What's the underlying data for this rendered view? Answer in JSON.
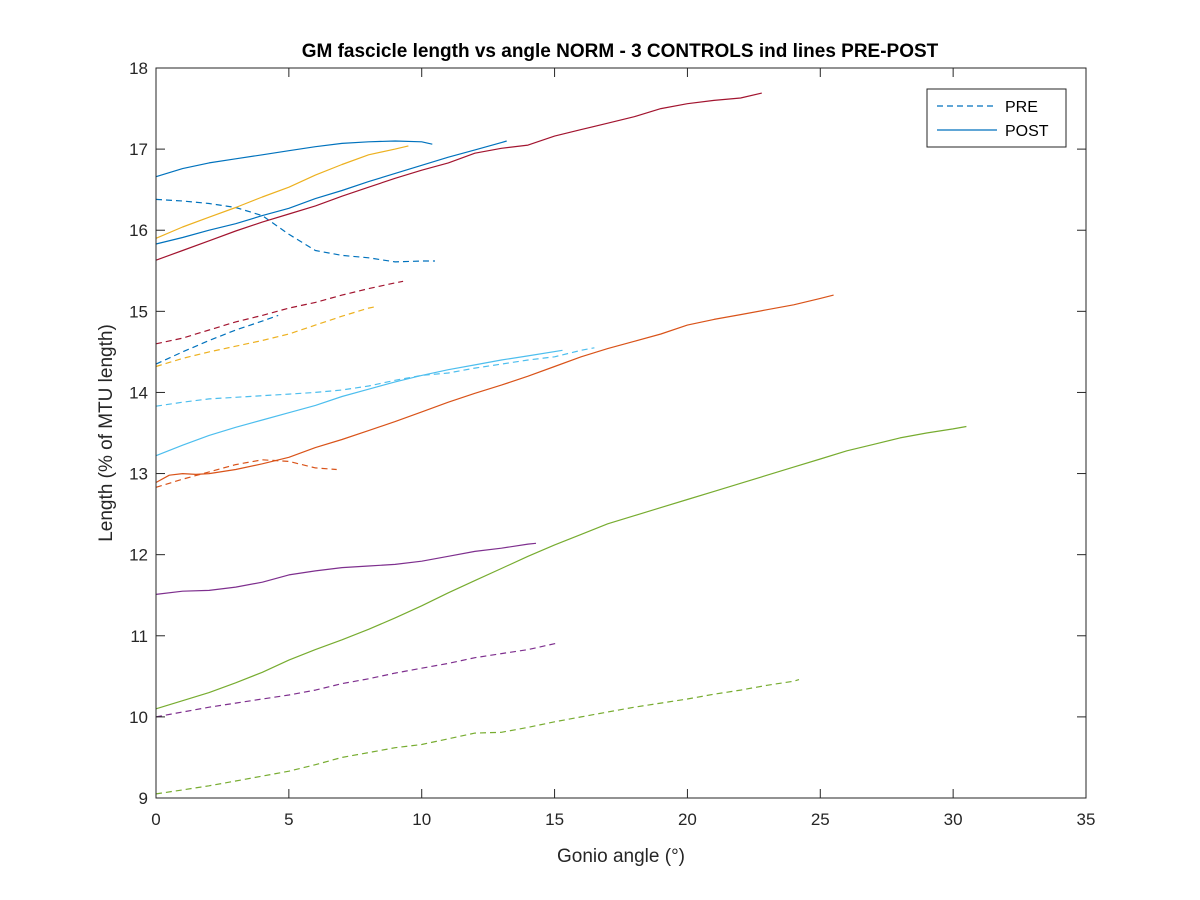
{
  "chart_data": {
    "type": "line",
    "title": "GM fascicle length vs angle NORM - 3 CONTROLS ind lines PRE-POST",
    "xlabel": "Gonio angle (°)",
    "ylabel": "Length (% of MTU length)",
    "xlim": [
      0,
      35
    ],
    "ylim": [
      9,
      18
    ],
    "xticks": [
      0,
      5,
      10,
      15,
      20,
      25,
      30,
      35
    ],
    "yticks": [
      9,
      10,
      11,
      12,
      13,
      14,
      15,
      16,
      17,
      18
    ],
    "grid": false,
    "legend": {
      "position": "top-right",
      "entries": [
        {
          "label": "PRE",
          "style": "dashed"
        },
        {
          "label": "POST",
          "style": "solid"
        }
      ]
    },
    "series": [
      {
        "color": "#0072BD",
        "style": "dashed",
        "x": [
          0,
          1,
          2,
          3,
          4,
          5,
          6,
          7,
          8,
          9,
          10,
          10.5
        ],
        "y": [
          16.38,
          16.36,
          16.33,
          16.28,
          16.18,
          15.95,
          15.75,
          15.69,
          15.66,
          15.61,
          15.62,
          15.62
        ]
      },
      {
        "color": "#0072BD",
        "style": "solid",
        "x": [
          0,
          1,
          2,
          3,
          4,
          5,
          6,
          7,
          8,
          9,
          10,
          10.4
        ],
        "y": [
          16.66,
          16.76,
          16.83,
          16.88,
          16.93,
          16.98,
          17.03,
          17.07,
          17.09,
          17.1,
          17.09,
          17.06
        ]
      },
      {
        "color": "#0072BD",
        "style": "dashed",
        "x": [
          0,
          1,
          2,
          3,
          4,
          4.6
        ],
        "y": [
          14.35,
          14.5,
          14.64,
          14.77,
          14.88,
          14.95
        ]
      },
      {
        "color": "#0072BD",
        "style": "solid",
        "x": [
          0,
          1,
          2,
          3,
          4,
          5,
          6,
          7,
          8,
          9,
          10,
          11,
          12,
          13,
          13.2
        ],
        "y": [
          15.83,
          15.91,
          16.0,
          16.08,
          16.18,
          16.27,
          16.39,
          16.49,
          16.6,
          16.7,
          16.8,
          16.9,
          16.99,
          17.08,
          17.1
        ]
      },
      {
        "color": "#D95319",
        "style": "dashed",
        "x": [
          0,
          1,
          2,
          3,
          4,
          5,
          6,
          6.8
        ],
        "y": [
          12.83,
          12.93,
          13.02,
          13.11,
          13.17,
          13.15,
          13.07,
          13.05
        ]
      },
      {
        "color": "#D95319",
        "style": "solid",
        "x": [
          0,
          0.5,
          1,
          1.5,
          2,
          3,
          4,
          5,
          6,
          7,
          8,
          9,
          10,
          11,
          12,
          13,
          14,
          15,
          16,
          17,
          18,
          19,
          20,
          21,
          22,
          23,
          24,
          25,
          25.5
        ],
        "y": [
          12.89,
          12.98,
          13.0,
          12.99,
          13.0,
          13.05,
          13.12,
          13.2,
          13.32,
          13.42,
          13.53,
          13.64,
          13.76,
          13.88,
          13.99,
          14.09,
          14.2,
          14.32,
          14.44,
          14.54,
          14.63,
          14.72,
          14.83,
          14.9,
          14.96,
          15.02,
          15.08,
          15.16,
          15.2
        ]
      },
      {
        "color": "#EDB120",
        "style": "dashed",
        "x": [
          0,
          1,
          2,
          3,
          4,
          5,
          6,
          7,
          8,
          8.3
        ],
        "y": [
          14.32,
          14.42,
          14.5,
          14.57,
          14.64,
          14.72,
          14.83,
          14.94,
          15.04,
          15.06
        ]
      },
      {
        "color": "#EDB120",
        "style": "solid",
        "x": [
          0,
          1,
          2,
          3,
          4,
          5,
          6,
          7,
          8,
          9,
          9.5
        ],
        "y": [
          15.9,
          16.04,
          16.16,
          16.28,
          16.41,
          16.53,
          16.68,
          16.81,
          16.93,
          17.0,
          17.04
        ]
      },
      {
        "color": "#A2142F",
        "style": "dashed",
        "x": [
          0,
          1,
          2,
          3,
          4,
          5,
          6,
          7,
          8,
          9,
          9.3
        ],
        "y": [
          14.6,
          14.67,
          14.77,
          14.87,
          14.95,
          15.04,
          15.11,
          15.2,
          15.28,
          15.35,
          15.37
        ]
      },
      {
        "color": "#A2142F",
        "style": "solid",
        "x": [
          0,
          1,
          2,
          3,
          4,
          5,
          6,
          7,
          8,
          9,
          10,
          11,
          12,
          13,
          14,
          15,
          16,
          17,
          18,
          19,
          20,
          21,
          22,
          22.8
        ],
        "y": [
          15.63,
          15.75,
          15.87,
          15.99,
          16.1,
          16.2,
          16.3,
          16.42,
          16.53,
          16.64,
          16.74,
          16.83,
          16.95,
          17.01,
          17.05,
          17.16,
          17.24,
          17.32,
          17.4,
          17.5,
          17.56,
          17.6,
          17.63,
          17.69
        ]
      },
      {
        "color": "#4DBEEE",
        "style": "dashed",
        "x": [
          0,
          1,
          2,
          3,
          4,
          5,
          6,
          7,
          8,
          9,
          10,
          11,
          12,
          13,
          14,
          15,
          16,
          16.5
        ],
        "y": [
          13.83,
          13.88,
          13.92,
          13.94,
          13.96,
          13.98,
          14.0,
          14.03,
          14.08,
          14.15,
          14.21,
          14.24,
          14.3,
          14.35,
          14.4,
          14.44,
          14.52,
          14.55
        ]
      },
      {
        "color": "#4DBEEE",
        "style": "solid",
        "x": [
          0,
          1,
          2,
          3,
          4,
          5,
          6,
          7,
          8,
          9,
          10,
          11,
          12,
          13,
          14,
          15.3
        ],
        "y": [
          13.22,
          13.35,
          13.47,
          13.57,
          13.66,
          13.75,
          13.84,
          13.95,
          14.04,
          14.13,
          14.21,
          14.28,
          14.34,
          14.4,
          14.45,
          14.52
        ]
      },
      {
        "color": "#7E2F8E",
        "style": "dashed",
        "x": [
          0,
          1,
          2,
          3,
          4,
          5,
          6,
          7,
          8,
          9,
          10,
          11,
          12,
          13,
          14,
          15.1
        ],
        "y": [
          10.0,
          10.06,
          10.12,
          10.17,
          10.22,
          10.27,
          10.33,
          10.41,
          10.47,
          10.54,
          10.6,
          10.66,
          10.73,
          10.78,
          10.83,
          10.91
        ]
      },
      {
        "color": "#7E2F8E",
        "style": "solid",
        "x": [
          0,
          1,
          2,
          3,
          4,
          5,
          6,
          7,
          8,
          9,
          10,
          11,
          12,
          13,
          14,
          14.3
        ],
        "y": [
          11.51,
          11.55,
          11.56,
          11.6,
          11.66,
          11.75,
          11.8,
          11.84,
          11.86,
          11.88,
          11.92,
          11.98,
          12.04,
          12.08,
          12.13,
          12.14
        ]
      },
      {
        "color": "#77AC30",
        "style": "dashed",
        "x": [
          0,
          1,
          2,
          3,
          4,
          5,
          6,
          7,
          8,
          9,
          10,
          11,
          12,
          13,
          14,
          15,
          16,
          17,
          18,
          19,
          20,
          21,
          22,
          23,
          24,
          24.2
        ],
        "y": [
          9.05,
          9.1,
          9.15,
          9.21,
          9.27,
          9.33,
          9.41,
          9.5,
          9.56,
          9.62,
          9.66,
          9.73,
          9.8,
          9.81,
          9.87,
          9.94,
          10.0,
          10.06,
          10.12,
          10.17,
          10.22,
          10.28,
          10.33,
          10.39,
          10.44,
          10.46
        ]
      },
      {
        "color": "#77AC30",
        "style": "solid",
        "x": [
          0,
          1,
          2,
          3,
          4,
          5,
          6,
          7,
          8,
          9,
          10,
          11,
          12,
          13,
          14,
          15,
          16,
          17,
          18,
          19,
          20,
          21,
          22,
          23,
          24,
          25,
          26,
          27,
          28,
          29,
          30,
          30.5
        ],
        "y": [
          10.1,
          10.2,
          10.3,
          10.42,
          10.55,
          10.7,
          10.83,
          10.95,
          11.08,
          11.22,
          11.37,
          11.53,
          11.68,
          11.83,
          11.98,
          12.12,
          12.25,
          12.38,
          12.48,
          12.58,
          12.68,
          12.78,
          12.88,
          12.98,
          13.08,
          13.18,
          13.28,
          13.36,
          13.44,
          13.5,
          13.55,
          13.58
        ]
      }
    ]
  }
}
